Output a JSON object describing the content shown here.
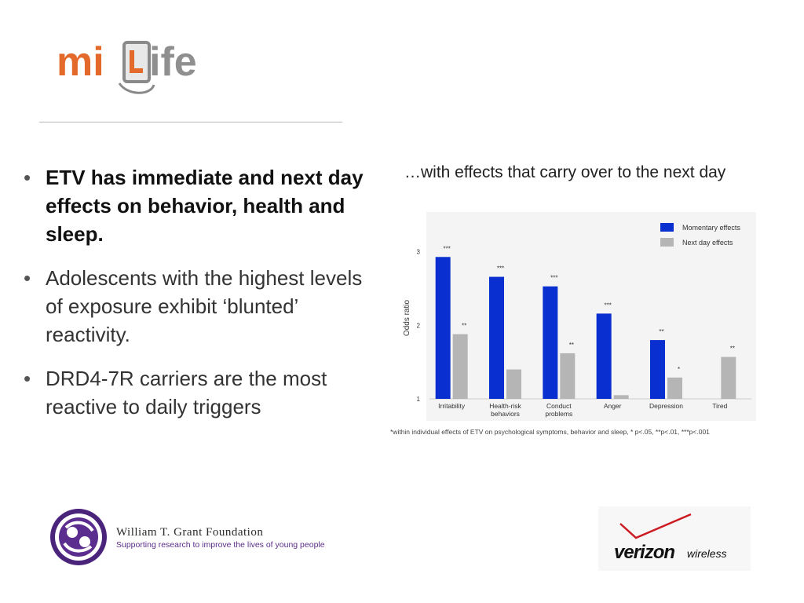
{
  "brand": {
    "logo_text_mi": "mi",
    "logo_text_life": "ife",
    "logo_letter": "L"
  },
  "bullets": [
    {
      "text": "ETV has immediate and next day effects on behavior, health and sleep.",
      "bold": true
    },
    {
      "text": "Adolescents with the highest levels of exposure exhibit ‘blunted’ reactivity.",
      "bold": false
    },
    {
      "text": "DRD4-7R carriers are the most reactive to daily triggers",
      "bold": false
    }
  ],
  "chart_title": "…with effects that carry over to the next day",
  "chart_data": {
    "type": "bar",
    "title": "",
    "ylabel": "Odds ratio",
    "xlabel": "",
    "ylim": [
      1,
      3.2
    ],
    "yticks": [
      1,
      2,
      3
    ],
    "categories": [
      "Irritability",
      "Health-risk behaviors",
      "Conduct problems",
      "Anger",
      "Depression",
      "Tired"
    ],
    "series": [
      {
        "name": "Momentary effects",
        "color": "#0a2fd0",
        "values": [
          2.93,
          2.66,
          2.53,
          2.16,
          1.8,
          null
        ],
        "labels": [
          "***",
          "***",
          "***",
          "***",
          "**",
          ""
        ]
      },
      {
        "name": "Next day effects",
        "color": "#b5b5b5",
        "values": [
          1.88,
          1.4,
          1.62,
          1.05,
          1.29,
          1.57
        ],
        "labels": [
          "**",
          "",
          "**",
          "",
          "*",
          "**"
        ]
      }
    ],
    "legend_position": "top-right",
    "grid": false
  },
  "footnote": "*within individual effects of ETV on psychological symptoms, behavior and sleep, * p<.05, **p<.01, ***p<.001",
  "sponsors": {
    "wtgf_name": "William T. Grant Foundation",
    "wtgf_tagline": "Supporting research to improve the lives of young people",
    "verizon_word": "verizon",
    "verizon_wireless": "wireless"
  }
}
